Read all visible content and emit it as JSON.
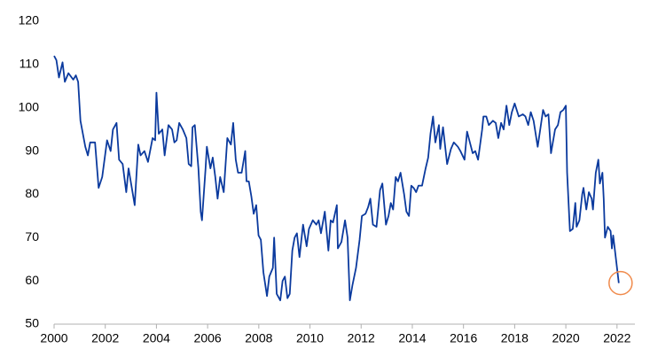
{
  "chart_data": {
    "type": "line",
    "x": [
      2000.0,
      2000.09,
      2000.19,
      2000.33,
      2000.42,
      2000.56,
      2000.75,
      2000.85,
      2000.94,
      2001.03,
      2001.22,
      2001.32,
      2001.41,
      2001.6,
      2001.74,
      2001.88,
      2002.07,
      2002.21,
      2002.3,
      2002.44,
      2002.54,
      2002.68,
      2002.82,
      2002.91,
      2003.15,
      2003.29,
      2003.38,
      2003.53,
      2003.67,
      2003.85,
      2003.95,
      2004.0,
      2004.09,
      2004.23,
      2004.32,
      2004.47,
      2004.61,
      2004.7,
      2004.79,
      2004.89,
      2005.03,
      2005.17,
      2005.26,
      2005.36,
      2005.41,
      2005.5,
      2005.64,
      2005.73,
      2005.78,
      2005.92,
      2005.97,
      2006.11,
      2006.2,
      2006.3,
      2006.39,
      2006.49,
      2006.63,
      2006.77,
      2006.91,
      2007.0,
      2007.1,
      2007.19,
      2007.33,
      2007.47,
      2007.52,
      2007.61,
      2007.71,
      2007.8,
      2007.9,
      2007.99,
      2008.08,
      2008.18,
      2008.32,
      2008.41,
      2008.55,
      2008.6,
      2008.7,
      2008.84,
      2008.93,
      2009.02,
      2009.12,
      2009.21,
      2009.31,
      2009.4,
      2009.49,
      2009.59,
      2009.73,
      2009.87,
      2009.96,
      2010.11,
      2010.25,
      2010.34,
      2010.43,
      2010.58,
      2010.72,
      2010.81,
      2010.9,
      2011.05,
      2011.09,
      2011.23,
      2011.37,
      2011.47,
      2011.56,
      2011.66,
      2011.8,
      2011.94,
      2012.03,
      2012.17,
      2012.27,
      2012.36,
      2012.46,
      2012.6,
      2012.74,
      2012.83,
      2012.97,
      2013.07,
      2013.16,
      2013.25,
      2013.35,
      2013.44,
      2013.54,
      2013.68,
      2013.77,
      2013.87,
      2013.96,
      2014.05,
      2014.15,
      2014.24,
      2014.38,
      2014.52,
      2014.62,
      2014.71,
      2014.81,
      2014.9,
      2015.04,
      2015.09,
      2015.2,
      2015.36,
      2015.51,
      2015.62,
      2015.78,
      2015.88,
      2016.04,
      2016.14,
      2016.25,
      2016.36,
      2016.46,
      2016.57,
      2016.73,
      2016.78,
      2016.89,
      2016.99,
      2017.15,
      2017.26,
      2017.36,
      2017.47,
      2017.57,
      2017.68,
      2017.79,
      2017.89,
      2018.0,
      2018.16,
      2018.32,
      2018.42,
      2018.53,
      2018.63,
      2018.74,
      2018.9,
      2019.0,
      2019.11,
      2019.21,
      2019.32,
      2019.42,
      2019.58,
      2019.69,
      2019.79,
      2019.9,
      2020.0,
      2020.05,
      2020.16,
      2020.27,
      2020.37,
      2020.42,
      2020.53,
      2020.64,
      2020.69,
      2020.8,
      2020.9,
      2021.01,
      2021.06,
      2021.17,
      2021.27,
      2021.33,
      2021.43,
      2021.48,
      2021.53,
      2021.64,
      2021.75,
      2021.8,
      2021.85,
      2021.96,
      2022.07
    ],
    "series": [
      {
        "color": "#0b3a9e",
        "values": [
          112,
          111,
          107,
          110.5,
          106,
          108,
          106.5,
          107.5,
          106,
          97,
          91,
          89,
          92,
          92,
          81.5,
          84,
          92.5,
          90,
          95,
          96.5,
          88,
          87,
          80.5,
          86,
          77.5,
          91.5,
          89,
          90,
          87.5,
          93,
          92.5,
          103.5,
          94,
          95,
          89,
          96,
          95,
          92,
          92.5,
          96.5,
          95,
          93,
          87,
          86.5,
          95.5,
          96,
          86,
          76,
          74,
          86,
          91,
          86,
          88.5,
          84,
          79,
          84,
          80.5,
          93,
          91.5,
          96.5,
          88,
          85,
          85,
          90,
          83,
          83,
          79.5,
          75.5,
          77.5,
          70.5,
          69.5,
          62,
          56.5,
          61,
          63,
          70,
          57,
          55.5,
          60,
          61,
          56,
          57,
          67,
          70,
          71,
          65.5,
          73,
          68,
          72,
          74,
          73,
          74,
          71,
          76,
          67,
          74,
          73.5,
          77.5,
          67.5,
          69,
          74,
          70,
          55.5,
          59,
          63,
          69.5,
          75,
          75.5,
          77,
          79,
          73,
          72.5,
          81,
          82.5,
          73,
          75,
          78,
          76.5,
          84,
          83,
          85,
          80,
          76,
          75,
          82,
          81.5,
          80.5,
          82,
          82,
          86,
          88.5,
          94,
          98,
          92,
          96,
          90.5,
          95.5,
          87,
          90.5,
          92,
          91,
          90,
          88,
          94.5,
          92,
          89.5,
          90,
          88,
          95,
          98,
          98,
          96,
          97,
          96.5,
          93,
          96.5,
          95,
          100.5,
          96,
          99,
          101,
          98,
          98.5,
          98,
          96,
          99,
          97,
          91,
          95,
          99.5,
          98,
          98.5,
          89.5,
          95,
          96,
          99,
          99.5,
          100.5,
          85,
          71.5,
          72,
          78,
          72.5,
          74,
          80,
          81.5,
          76.5,
          80.5,
          79,
          76.5,
          85,
          88,
          82.5,
          85,
          79,
          70,
          72.5,
          71.5,
          67.5,
          70.5,
          65,
          59.5
        ]
      }
    ],
    "xlim": [
      2000,
      2022.7
    ],
    "xticks": [
      2000,
      2002,
      2004,
      2006,
      2008,
      2010,
      2012,
      2014,
      2016,
      2018,
      2020,
      2022
    ],
    "ylim": [
      50,
      120
    ],
    "yticks": [
      50,
      60,
      70,
      80,
      90,
      100,
      110,
      120
    ],
    "grid": false
  }
}
